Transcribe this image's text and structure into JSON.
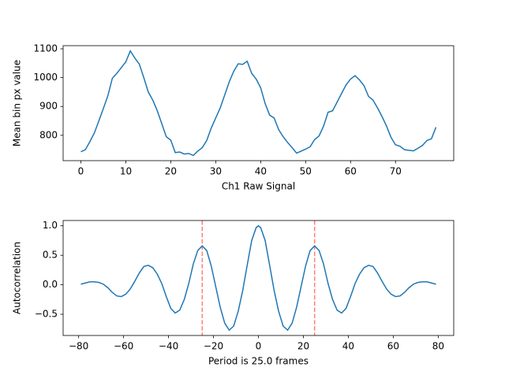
{
  "chart_data": [
    {
      "type": "line",
      "xlabel": "Ch1 Raw Signal",
      "ylabel": "Mean bin px value",
      "x": [
        0,
        1,
        2,
        3,
        4,
        5,
        6,
        7,
        8,
        9,
        10,
        11,
        12,
        13,
        14,
        15,
        16,
        17,
        18,
        19,
        20,
        21,
        22,
        23,
        24,
        25,
        26,
        27,
        28,
        29,
        30,
        31,
        32,
        33,
        34,
        35,
        36,
        37,
        38,
        39,
        40,
        41,
        42,
        43,
        44,
        45,
        46,
        47,
        48,
        49,
        50,
        51,
        52,
        53,
        54,
        55,
        56,
        57,
        58,
        59,
        60,
        61,
        62,
        63,
        64,
        65,
        66,
        67,
        68,
        69,
        70,
        71,
        72,
        73,
        74,
        75,
        76,
        77,
        78,
        79
      ],
      "series": [
        {
          "color": "#1f77b4",
          "values": [
            743,
            750,
            778,
            808,
            850,
            893,
            937,
            998,
            1015,
            1035,
            1055,
            1093,
            1068,
            1047,
            1000,
            950,
            922,
            885,
            840,
            795,
            783,
            740,
            742,
            735,
            737,
            730,
            745,
            757,
            782,
            825,
            860,
            895,
            940,
            985,
            1022,
            1048,
            1046,
            1057,
            1015,
            995,
            965,
            910,
            870,
            860,
            820,
            795,
            775,
            757,
            738,
            745,
            752,
            760,
            785,
            798,
            832,
            880,
            885,
            915,
            945,
            975,
            995,
            1007,
            992,
            972,
            935,
            922,
            895,
            865,
            832,
            793,
            767,
            762,
            750,
            748,
            746,
            755,
            765,
            782,
            788,
            828
          ]
        }
      ],
      "xlim": [
        -3.95,
        82.95
      ],
      "xticks": [
        0,
        10,
        20,
        30,
        40,
        50,
        60,
        70
      ],
      "ylim": [
        712,
        1111
      ],
      "yticks": [
        800,
        900,
        1000,
        1100
      ]
    },
    {
      "type": "line",
      "xlabel": "Period is 25.0 frames",
      "ylabel": "Autocorrelation",
      "x": [
        -79,
        -77,
        -75,
        -73,
        -71,
        -69,
        -67,
        -65,
        -63,
        -61,
        -59,
        -57,
        -55,
        -53,
        -51,
        -49,
        -47,
        -45,
        -43,
        -41,
        -39,
        -37,
        -35,
        -33,
        -31,
        -29,
        -27,
        -25,
        -23,
        -21,
        -19,
        -17,
        -15,
        -13,
        -11,
        -9,
        -7,
        -5,
        -3,
        -1,
        0,
        1,
        3,
        5,
        7,
        9,
        11,
        13,
        15,
        17,
        19,
        21,
        23,
        25,
        27,
        29,
        31,
        33,
        35,
        37,
        39,
        41,
        43,
        45,
        47,
        49,
        51,
        53,
        55,
        57,
        59,
        61,
        63,
        65,
        67,
        69,
        71,
        73,
        75,
        77,
        79
      ],
      "series": [
        {
          "color": "#1f77b4",
          "values": [
            0.01,
            0.03,
            0.05,
            0.05,
            0.04,
            0.01,
            -0.05,
            -0.13,
            -0.19,
            -0.2,
            -0.16,
            -0.07,
            0.06,
            0.2,
            0.31,
            0.33,
            0.29,
            0.18,
            0.02,
            -0.2,
            -0.4,
            -0.48,
            -0.43,
            -0.25,
            0.02,
            0.35,
            0.58,
            0.66,
            0.58,
            0.32,
            -0.03,
            -0.38,
            -0.65,
            -0.77,
            -0.7,
            -0.45,
            -0.1,
            0.33,
            0.75,
            0.97,
            1.0,
            0.97,
            0.75,
            0.33,
            -0.1,
            -0.45,
            -0.7,
            -0.77,
            -0.65,
            -0.38,
            -0.03,
            0.32,
            0.58,
            0.66,
            0.58,
            0.35,
            0.02,
            -0.25,
            -0.43,
            -0.48,
            -0.4,
            -0.2,
            0.02,
            0.18,
            0.29,
            0.33,
            0.31,
            0.2,
            0.06,
            -0.07,
            -0.16,
            -0.2,
            -0.19,
            -0.13,
            -0.05,
            0.01,
            0.04,
            0.05,
            0.05,
            0.03,
            0.01
          ]
        }
      ],
      "vlines": [
        -25,
        25
      ],
      "vline_color": "#ff7f7f",
      "xlim": [
        -86.9,
        86.9
      ],
      "xticks": [
        {
          "value": -80,
          "label": "−80"
        },
        {
          "value": -60,
          "label": "−60"
        },
        {
          "value": -40,
          "label": "−40"
        },
        {
          "value": -20,
          "label": "−20"
        },
        0,
        20,
        40,
        60,
        80
      ],
      "ylim": [
        -0.86,
        1.09
      ],
      "yticks": [
        {
          "value": -0.5,
          "label": "−0.5"
        },
        {
          "value": 0,
          "label": "0.0"
        },
        {
          "value": 0.5,
          "label": "0.5"
        },
        {
          "value": 1,
          "label": "1.0"
        }
      ]
    }
  ]
}
